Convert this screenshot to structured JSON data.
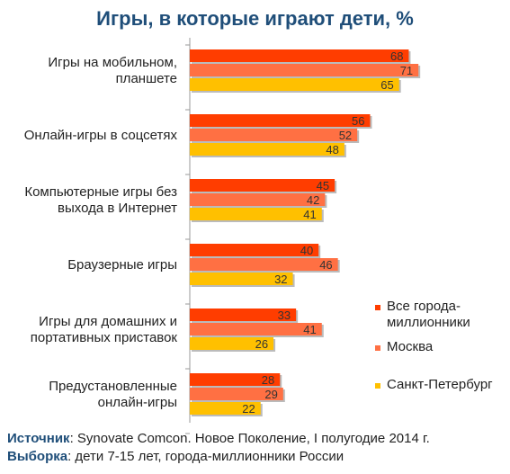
{
  "chart_data": {
    "type": "bar",
    "orientation": "horizontal",
    "title": "Игры, в которые играют дети, %",
    "categories": [
      [
        "Игры на мобильном,",
        "планшете"
      ],
      [
        "Онлайн-игры в соцсетях"
      ],
      [
        "Компьютерные игры без",
        "выхода в Интернет"
      ],
      [
        "Браузерные игры"
      ],
      [
        "Игры для домашних и",
        "портативных приставок"
      ],
      [
        "Предустановленные",
        "онлайн-игры"
      ]
    ],
    "series": [
      {
        "name": "Все города-миллионники",
        "legend_lines": [
          "Все города-",
          "миллионники"
        ],
        "color": "#ff3d00",
        "values": [
          68,
          56,
          45,
          40,
          33,
          28
        ]
      },
      {
        "name": "Москва",
        "legend_lines": [
          "Москва"
        ],
        "color": "#ff7043",
        "values": [
          71,
          52,
          42,
          46,
          41,
          29
        ]
      },
      {
        "name": "Санкт-Петербург",
        "legend_lines": [
          "Санкт-Петербург"
        ],
        "color": "#ffc000",
        "values": [
          65,
          48,
          41,
          32,
          26,
          22
        ]
      }
    ],
    "xlim": [
      0,
      100
    ],
    "grid": false,
    "legend_position": "right"
  },
  "footer": {
    "source_label": "Источник",
    "source_text": ": Synovate Comcon. Новое Поколение, I полугодие 2014 г.",
    "sample_label": "Выборка",
    "sample_text": ": дети 7-15 лет, города-миллионники России"
  }
}
